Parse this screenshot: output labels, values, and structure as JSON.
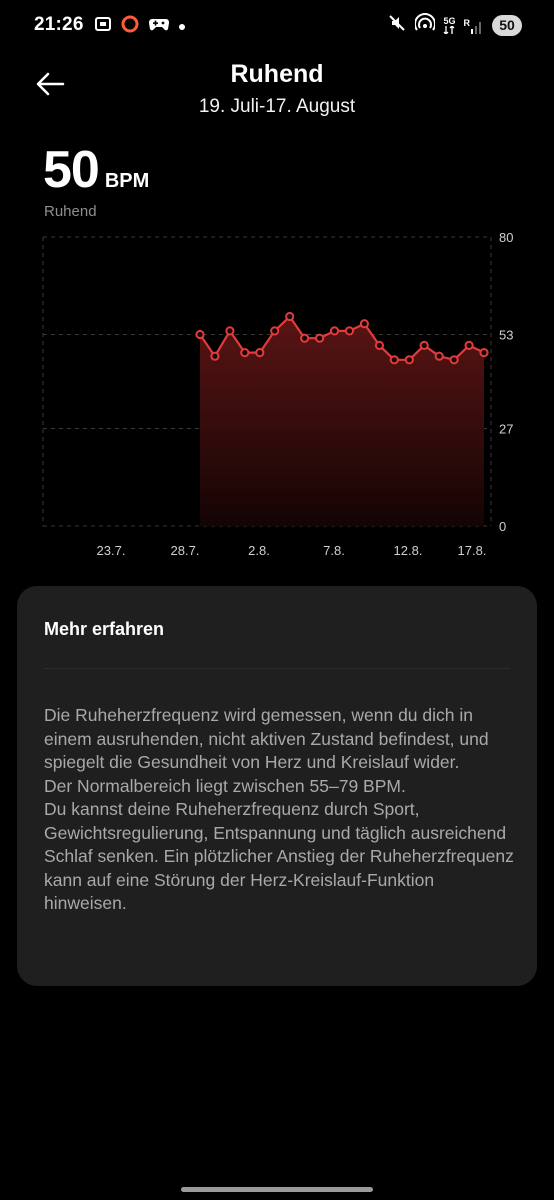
{
  "status_bar": {
    "time": "21:26",
    "network_label": "5G",
    "roaming_label": "R",
    "battery": "50"
  },
  "header": {
    "title": "Ruhend",
    "date_range": "19. Juli-17. August"
  },
  "summary": {
    "value": "50",
    "unit": "BPM",
    "label": "Ruhend"
  },
  "chart_data": {
    "type": "line",
    "y_ticks": [
      "80",
      "53",
      "27",
      "0"
    ],
    "ylim": [
      0,
      80
    ],
    "x_tick_labels": [
      "23.7.",
      "28.7.",
      "2.8.",
      "7.8.",
      "12.8.",
      "17.8."
    ],
    "series": [
      {
        "values": [
          53,
          47,
          54,
          48,
          48,
          54,
          58,
          52,
          52,
          54,
          54,
          56,
          50,
          46,
          46,
          50,
          47,
          46,
          50,
          48
        ]
      }
    ],
    "line_color": "#e23b3b",
    "area_gradient": [
      "#5a1414",
      "#140404"
    ],
    "grid": true
  },
  "info": {
    "title": "Mehr erfahren",
    "paragraphs": [
      "Die Ruheherzfrequenz wird gemessen, wenn du dich in einem ausruhenden, nicht aktiven Zustand befindest, und spiegelt die Gesundheit von Herz und Kreislauf wider.",
      "Der Normalbereich liegt zwischen 55–79 BPM.",
      "Du kannst deine Ruheherzfrequenz durch Sport, Gewichtsregulierung, Entspannung und täglich ausreichend Schlaf senken. Ein plötzlicher Anstieg der Ruheherzfrequenz kann auf eine Störung der Herz-Kreislauf-Funktion hinweisen."
    ]
  }
}
